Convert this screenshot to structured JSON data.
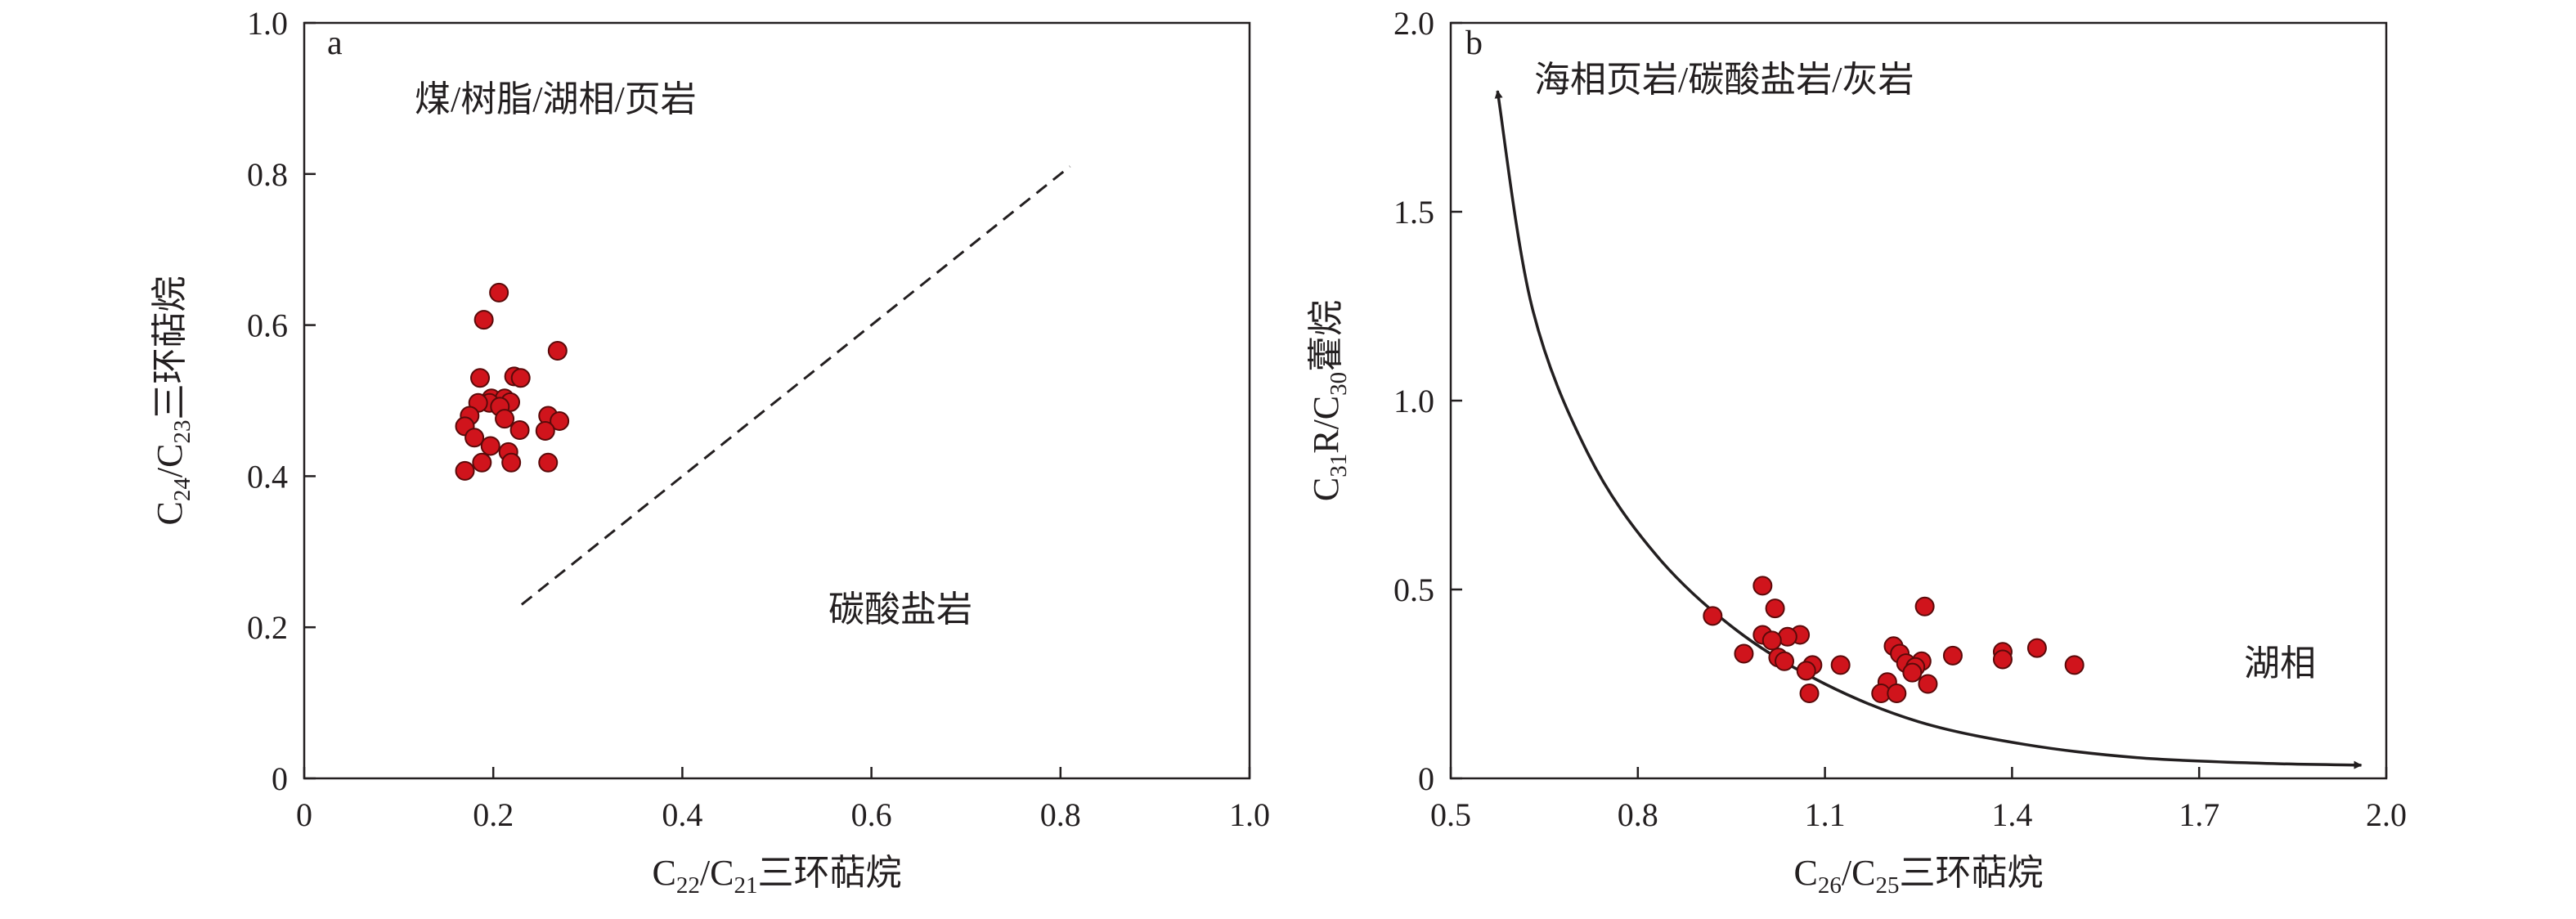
{
  "chart_data": [
    {
      "type": "scatter",
      "panel_label": "a",
      "xlabel": {
        "pre": "C",
        "sub1": "22",
        "mid": "/C",
        "sub2": "21",
        "post": "三环萜烷"
      },
      "ylabel": {
        "pre": "C",
        "sub1": "24",
        "mid": "/C",
        "sub2": "23",
        "post": "三环萜烷"
      },
      "xlim": [
        0,
        1.0
      ],
      "ylim": [
        0,
        1.0
      ],
      "xticks": [
        "0",
        "0.2",
        "0.4",
        "0.6",
        "0.8",
        "1.0"
      ],
      "yticks": [
        "0",
        "0.2",
        "0.4",
        "0.6",
        "0.8",
        "1.0"
      ],
      "grid": false,
      "region_labels": [
        "煤/树脂/湖相/页岩",
        "碳酸盐岩"
      ],
      "boundary_line": {
        "style": "dashed",
        "x": [
          0.23,
          0.81
        ],
        "y": [
          0.23,
          0.81
        ]
      },
      "marker_color": "#d0141c",
      "points": [
        [
          0.206,
          0.643
        ],
        [
          0.19,
          0.607
        ],
        [
          0.268,
          0.566
        ],
        [
          0.222,
          0.532
        ],
        [
          0.229,
          0.53
        ],
        [
          0.186,
          0.53
        ],
        [
          0.198,
          0.503
        ],
        [
          0.212,
          0.503
        ],
        [
          0.218,
          0.498
        ],
        [
          0.196,
          0.497
        ],
        [
          0.184,
          0.497
        ],
        [
          0.207,
          0.492
        ],
        [
          0.175,
          0.48
        ],
        [
          0.258,
          0.48
        ],
        [
          0.212,
          0.476
        ],
        [
          0.27,
          0.473
        ],
        [
          0.17,
          0.466
        ],
        [
          0.228,
          0.461
        ],
        [
          0.255,
          0.46
        ],
        [
          0.18,
          0.451
        ],
        [
          0.197,
          0.44
        ],
        [
          0.216,
          0.432
        ],
        [
          0.188,
          0.418
        ],
        [
          0.258,
          0.418
        ],
        [
          0.219,
          0.418
        ],
        [
          0.17,
          0.407
        ]
      ]
    },
    {
      "type": "scatter",
      "panel_label": "b",
      "xlabel": {
        "pre": "C",
        "sub1": "26",
        "mid": "/C",
        "sub2": "25",
        "post": "三环萜烷"
      },
      "ylabel": {
        "pre": "C",
        "sub1": "31",
        "mid": "R/C",
        "sub2": "30",
        "post": "藿烷"
      },
      "xlim": [
        0.5,
        2.0
      ],
      "ylim": [
        0,
        2.0
      ],
      "xticks": [
        "0.5",
        "0.8",
        "1.1",
        "1.4",
        "1.7",
        "2.0"
      ],
      "yticks": [
        "0",
        "0.5",
        "1.0",
        "1.5",
        "2.0"
      ],
      "grid": false,
      "region_labels": [
        "海相页岩/碳酸盐岩/灰岩",
        "湖相"
      ],
      "trend_curve": {
        "style": "solid with arrowheads at both ends",
        "x": [
          0.575,
          0.63,
          0.72,
          0.83,
          0.96,
          1.1,
          1.25,
          1.42,
          1.6,
          1.8,
          1.96
        ],
        "y": [
          1.82,
          1.25,
          0.86,
          0.59,
          0.39,
          0.25,
          0.15,
          0.09,
          0.055,
          0.04,
          0.035
        ]
      },
      "marker_color": "#d0141c",
      "points": [
        [
          1.0,
          0.51
        ],
        [
          0.92,
          0.43
        ],
        [
          1.02,
          0.45
        ],
        [
          1.26,
          0.455
        ],
        [
          1.0,
          0.38
        ],
        [
          1.06,
          0.38
        ],
        [
          1.04,
          0.375
        ],
        [
          1.015,
          0.365
        ],
        [
          0.97,
          0.33
        ],
        [
          1.025,
          0.32
        ],
        [
          1.035,
          0.31
        ],
        [
          1.21,
          0.35
        ],
        [
          1.22,
          0.33
        ],
        [
          1.23,
          0.305
        ],
        [
          1.255,
          0.31
        ],
        [
          1.245,
          0.295
        ],
        [
          1.24,
          0.28
        ],
        [
          1.305,
          0.325
        ],
        [
          1.385,
          0.335
        ],
        [
          1.385,
          0.315
        ],
        [
          1.44,
          0.345
        ],
        [
          1.5,
          0.3
        ],
        [
          1.125,
          0.3
        ],
        [
          1.08,
          0.3
        ],
        [
          1.07,
          0.285
        ],
        [
          1.2,
          0.255
        ],
        [
          1.265,
          0.25
        ],
        [
          1.19,
          0.225
        ],
        [
          1.215,
          0.225
        ],
        [
          1.075,
          0.225
        ]
      ]
    }
  ]
}
